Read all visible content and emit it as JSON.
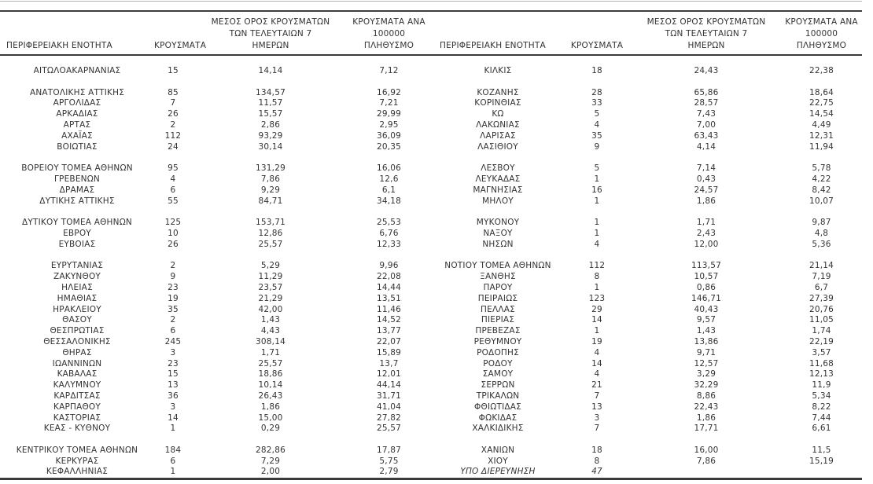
{
  "report": {
    "language": "el",
    "text_color": "#333333",
    "rule_color": "#3a3a3a",
    "background_color": "#ffffff"
  },
  "table": {
    "headers": {
      "region": "ΠΕΡΙΦΕΡΕΙΑΚΗ ΕΝΟΤΗΤΑ",
      "cases": "ΚΡΟΥΣΜΑΤΑ",
      "avg7_l1": "ΜΕΣΟΣ ΟΡΟΣ ΚΡΟΥΣΜΑΤΩΝ",
      "avg7_l2": "ΤΩΝ ΤΕΛΕΥΤΑΙΩΝ 7",
      "avg7_l3": "ΗΜΕΡΩΝ",
      "per100k_l1": "ΚΡΟΥΣΜΑΤΑ ΑΝΑ 100000",
      "per100k_l2": "ΠΛΗΘΥΣΜΟ"
    },
    "rows": [
      {
        "l": [
          "ΑΙΤΩΛΟΑΚΑΡΝΑΝΙΑΣ",
          "15",
          "14,14",
          "7,12"
        ],
        "r": [
          "ΚΙΛΚΙΣ",
          "18",
          "24,43",
          "22,38"
        ]
      },
      {
        "spacer": true
      },
      {
        "l": [
          "ΑΝΑΤΟΛΙΚΗΣ ΑΤΤΙΚΗΣ",
          "85",
          "134,57",
          "16,92"
        ],
        "r": [
          "ΚΟΖΑΝΗΣ",
          "28",
          "65,86",
          "18,64"
        ]
      },
      {
        "l": [
          "ΑΡΓΟΛΙΔΑΣ",
          "7",
          "11,57",
          "7,21"
        ],
        "r": [
          "ΚΟΡΙΝΘΙΑΣ",
          "33",
          "28,57",
          "22,75"
        ]
      },
      {
        "l": [
          "ΑΡΚΑΔΙΑΣ",
          "26",
          "15,57",
          "29,99"
        ],
        "r": [
          "ΚΩ",
          "5",
          "7,43",
          "14,54"
        ]
      },
      {
        "l": [
          "ΑΡΤΑΣ",
          "2",
          "2,86",
          "2,95"
        ],
        "r": [
          "ΛΑΚΩΝΙΑΣ",
          "4",
          "7,00",
          "4,49"
        ]
      },
      {
        "l": [
          "ΑΧΑΪΑΣ",
          "112",
          "93,29",
          "36,09"
        ],
        "r": [
          "ΛΑΡΙΣΑΣ",
          "35",
          "63,43",
          "12,31"
        ]
      },
      {
        "l": [
          "ΒΟΙΩΤΙΑΣ",
          "24",
          "30,14",
          "20,35"
        ],
        "r": [
          "ΛΑΣΙΘΙΟΥ",
          "9",
          "4,14",
          "11,94"
        ]
      },
      {
        "spacer": true
      },
      {
        "l": [
          "ΒΟΡΕΙΟΥ ΤΟΜΕΑ ΑΘΗΝΩΝ",
          "95",
          "131,29",
          "16,06"
        ],
        "r": [
          "ΛΕΣΒΟΥ",
          "5",
          "7,14",
          "5,78"
        ]
      },
      {
        "l": [
          "ΓΡΕΒΕΝΩΝ",
          "4",
          "7,86",
          "12,6"
        ],
        "r": [
          "ΛΕΥΚΑΔΑΣ",
          "1",
          "0,43",
          "4,22"
        ]
      },
      {
        "l": [
          "ΔΡΑΜΑΣ",
          "6",
          "9,29",
          "6,1"
        ],
        "r": [
          "ΜΑΓΝΗΣΙΑΣ",
          "16",
          "24,57",
          "8,42"
        ]
      },
      {
        "l": [
          "ΔΥΤΙΚΗΣ ΑΤΤΙΚΗΣ",
          "55",
          "84,71",
          "34,18"
        ],
        "r": [
          "ΜΗΛΟΥ",
          "1",
          "1,86",
          "10,07"
        ]
      },
      {
        "spacer": true
      },
      {
        "l": [
          "ΔΥΤΙΚΟΥ ΤΟΜΕΑ ΑΘΗΝΩΝ",
          "125",
          "153,71",
          "25,53"
        ],
        "r": [
          "ΜΥΚΟΝΟΥ",
          "1",
          "1,71",
          "9,87"
        ]
      },
      {
        "l": [
          "ΕΒΡΟΥ",
          "10",
          "12,86",
          "6,76"
        ],
        "r": [
          "ΝΑΞΟΥ",
          "1",
          "2,43",
          "4,8"
        ]
      },
      {
        "l": [
          "ΕΥΒΟΙΑΣ",
          "26",
          "25,57",
          "12,33"
        ],
        "r": [
          "ΝΗΣΩΝ",
          "4",
          "12,00",
          "5,36"
        ]
      },
      {
        "spacer": true
      },
      {
        "l": [
          "ΕΥΡΥΤΑΝΙΑΣ",
          "2",
          "5,29",
          "9,96"
        ],
        "r": [
          "ΝΟΤΙΟΥ ΤΟΜΕΑ ΑΘΗΝΩΝ",
          "112",
          "113,57",
          "21,14"
        ]
      },
      {
        "l": [
          "ΖΑΚΥΝΘΟΥ",
          "9",
          "11,29",
          "22,08"
        ],
        "r": [
          "ΞΑΝΘΗΣ",
          "8",
          "10,57",
          "7,19"
        ]
      },
      {
        "l": [
          "ΗΛΕΙΑΣ",
          "23",
          "23,57",
          "14,44"
        ],
        "r": [
          "ΠΑΡΟΥ",
          "1",
          "0,86",
          "6,7"
        ]
      },
      {
        "l": [
          "ΗΜΑΘΙΑΣ",
          "19",
          "21,29",
          "13,51"
        ],
        "r": [
          "ΠΕΙΡΑΙΩΣ",
          "123",
          "146,71",
          "27,39"
        ]
      },
      {
        "l": [
          "ΗΡΑΚΛΕΙΟΥ",
          "35",
          "42,00",
          "11,46"
        ],
        "r": [
          "ΠΕΛΛΑΣ",
          "29",
          "40,43",
          "20,76"
        ]
      },
      {
        "l": [
          "ΘΑΣΟΥ",
          "2",
          "1,43",
          "14,52"
        ],
        "r": [
          "ΠΙΕΡΙΑΣ",
          "14",
          "9,57",
          "11,05"
        ]
      },
      {
        "l": [
          "ΘΕΣΠΡΩΤΙΑΣ",
          "6",
          "4,43",
          "13,77"
        ],
        "r": [
          "ΠΡΕΒΕΖΑΣ",
          "1",
          "1,43",
          "1,74"
        ]
      },
      {
        "l": [
          "ΘΕΣΣΑΛΟΝΙΚΗΣ",
          "245",
          "308,14",
          "22,07"
        ],
        "r": [
          "ΡΕΘΥΜΝΟΥ",
          "19",
          "13,86",
          "22,19"
        ]
      },
      {
        "l": [
          "ΘΗΡΑΣ",
          "3",
          "1,71",
          "15,89"
        ],
        "r": [
          "ΡΟΔΟΠΗΣ",
          "4",
          "9,71",
          "3,57"
        ]
      },
      {
        "l": [
          "ΙΩΑΝΝΙΝΩΝ",
          "23",
          "25,57",
          "13,7"
        ],
        "r": [
          "ΡΟΔΟΥ",
          "14",
          "12,57",
          "11,68"
        ]
      },
      {
        "l": [
          "ΚΑΒΑΛΑΣ",
          "15",
          "18,86",
          "12,01"
        ],
        "r": [
          "ΣΑΜΟΥ",
          "4",
          "3,29",
          "12,13"
        ]
      },
      {
        "l": [
          "ΚΑΛΥΜΝΟΥ",
          "13",
          "10,14",
          "44,14"
        ],
        "r": [
          "ΣΕΡΡΩΝ",
          "21",
          "32,29",
          "11,9"
        ]
      },
      {
        "l": [
          "ΚΑΡΔΙΤΣΑΣ",
          "36",
          "26,43",
          "31,71"
        ],
        "r": [
          "ΤΡΙΚΑΛΩΝ",
          "7",
          "8,86",
          "5,34"
        ]
      },
      {
        "l": [
          "ΚΑΡΠΑΘΟΥ",
          "3",
          "1,86",
          "41,04"
        ],
        "r": [
          "ΦΘΙΩΤΙΔΑΣ",
          "13",
          "22,43",
          "8,22"
        ]
      },
      {
        "l": [
          "ΚΑΣΤΟΡΙΑΣ",
          "14",
          "15,00",
          "27,82"
        ],
        "r": [
          "ΦΩΚΙΔΑΣ",
          "3",
          "1,86",
          "7,44"
        ]
      },
      {
        "l": [
          "ΚΕΑΣ - ΚΥΘΝΟΥ",
          "1",
          "0,29",
          "25,57"
        ],
        "r": [
          "ΧΑΛΚΙΔΙΚΗΣ",
          "7",
          "17,71",
          "6,61"
        ]
      },
      {
        "spacer": true
      },
      {
        "l": [
          "ΚΕΝΤΡΙΚΟΥ ΤΟΜΕΑ ΑΘΗΝΩΝ",
          "184",
          "282,86",
          "17,87"
        ],
        "r": [
          "ΧΑΝΙΩΝ",
          "18",
          "16,00",
          "11,5"
        ]
      },
      {
        "l": [
          "ΚΕΡΚΥΡΑΣ",
          "6",
          "7,29",
          "5,75"
        ],
        "r": [
          "ΧΙΟΥ",
          "8",
          "7,86",
          "15,19"
        ]
      },
      {
        "l": [
          "ΚΕΦΑΛΛΗΝΙΑΣ",
          "1",
          "2,00",
          "2,79"
        ],
        "r": [
          "ΥΠΟ ΔΙΕΡΕΥΝΗΣΗ",
          "47",
          "",
          ""
        ],
        "r_italic": true
      }
    ]
  }
}
